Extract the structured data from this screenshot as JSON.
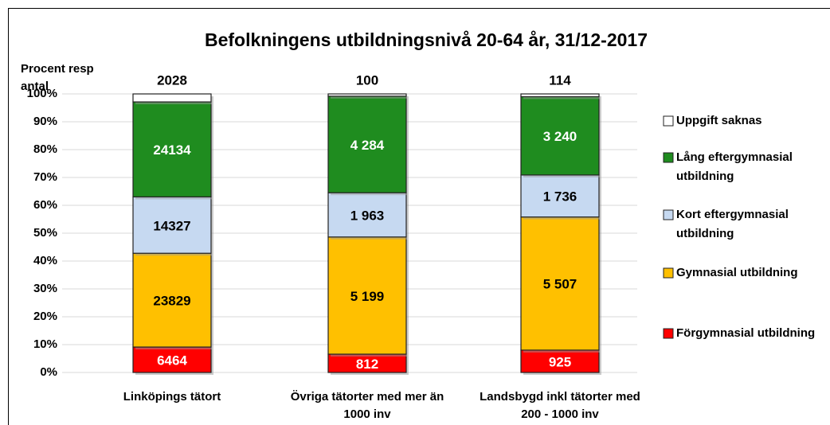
{
  "chart_data": {
    "type": "stacked_percent_bar",
    "title": "Befolkningens utbildningsnivå 20-64 år, 31/12-2017",
    "y_label": "Procent resp antal",
    "categories": [
      "Linköpings tätort",
      "Övriga tätorter med mer än 1000 inv",
      "Landsbygd inkl tätorter med 200 - 1000 inv"
    ],
    "series": [
      {
        "name": "Förgymnasial utbildning",
        "color": "#ff0000",
        "values": [
          6464,
          812,
          925
        ],
        "value_labels": [
          "6464",
          "812",
          "925"
        ]
      },
      {
        "name": "Gymnasial utbildning",
        "color": "#ffc000",
        "values": [
          23829,
          5199,
          5507
        ],
        "value_labels": [
          "23829",
          "5 199",
          "5 507"
        ]
      },
      {
        "name": "Kort eftergymnasial utbildning",
        "color": "#c6d9f1",
        "values": [
          14327,
          1963,
          1736
        ],
        "value_labels": [
          "14327",
          "1 963",
          "1 736"
        ]
      },
      {
        "name": "Lång eftergymnasial utbildning",
        "color": "#1f8c1f",
        "values": [
          24134,
          4284,
          3240
        ],
        "value_labels": [
          "24134",
          "4 284",
          "3 240"
        ]
      },
      {
        "name": "Uppgift saknas",
        "color": "#ffffff",
        "values": [
          2028,
          100,
          114
        ]
      }
    ],
    "ylim": [
      0,
      100
    ],
    "yticks": [
      {
        "value": 0,
        "label": "0%"
      },
      {
        "value": 10,
        "label": "10%"
      },
      {
        "value": 20,
        "label": "20%"
      },
      {
        "value": 30,
        "label": "30%"
      },
      {
        "value": 40,
        "label": "40%"
      },
      {
        "value": 50,
        "label": "50%"
      },
      {
        "value": 60,
        "label": "60%"
      },
      {
        "value": 70,
        "label": "70%"
      },
      {
        "value": 80,
        "label": "80%"
      },
      {
        "value": 90,
        "label": "90%"
      },
      {
        "value": 100,
        "label": "100%"
      }
    ],
    "grid": true,
    "legend": "right"
  }
}
